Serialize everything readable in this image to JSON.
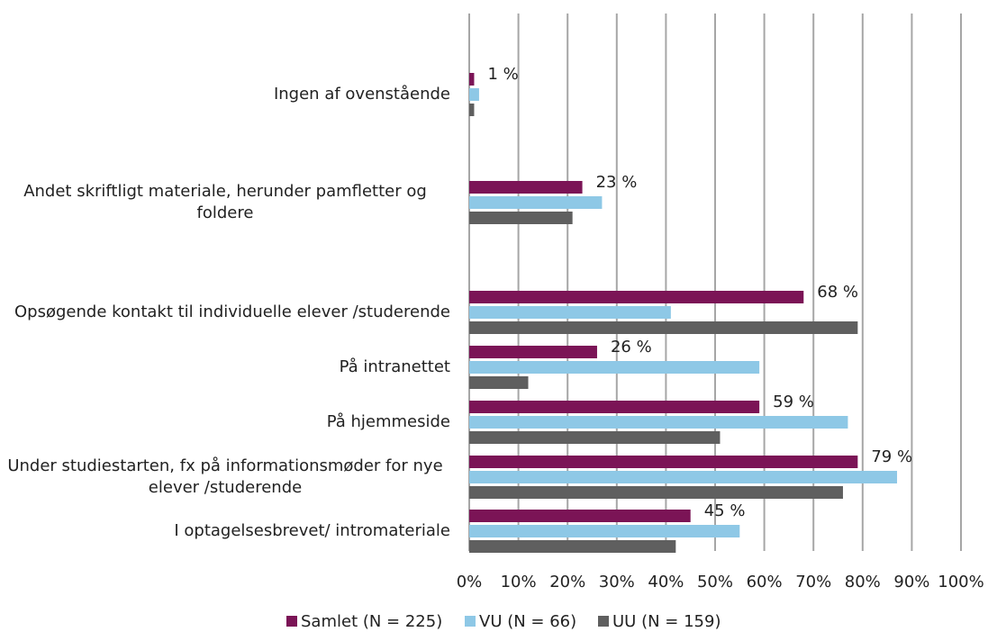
{
  "chart_data": {
    "type": "bar",
    "orientation": "horizontal",
    "categories": [
      "Ingen af ovenstående",
      "Andet skriftligt materiale, herunder pamfletter og foldere",
      "Opsøgende kontakt til individuelle elever /studerende",
      "På intranettet",
      "På hjemmeside",
      "Under studiestarten, fx på informationsmøder for nye elever /studerende",
      "I optagelsesbrevet/ intromateriale"
    ],
    "series": [
      {
        "name": "Samlet (N = 225)",
        "color": "#7b1456",
        "values": [
          1,
          23,
          68,
          26,
          59,
          79,
          45
        ],
        "value_labels": [
          "1 %",
          "23 %",
          "68 %",
          "26 %",
          "59 %",
          "79 %",
          "45 %"
        ]
      },
      {
        "name": "VU (N = 66)",
        "color": "#8ec8e6",
        "values": [
          2,
          27,
          41,
          59,
          77,
          87,
          55
        ]
      },
      {
        "name": "UU (N = 159)",
        "color": "#5f5f5f",
        "values": [
          1,
          21,
          79,
          12,
          51,
          76,
          42
        ]
      }
    ],
    "xlim": [
      0,
      100
    ],
    "xticks": [
      {
        "value": 0,
        "label": "0%"
      },
      {
        "value": 10,
        "label": "10%"
      },
      {
        "value": 20,
        "label": "20%"
      },
      {
        "value": 30,
        "label": "30%"
      },
      {
        "value": 40,
        "label": "40%"
      },
      {
        "value": 50,
        "label": "50%"
      },
      {
        "value": 60,
        "label": "60%"
      },
      {
        "value": 70,
        "label": "70%"
      },
      {
        "value": 80,
        "label": "80%"
      },
      {
        "value": 90,
        "label": "90%"
      },
      {
        "value": 100,
        "label": "100%"
      }
    ],
    "grid": true,
    "legend": "bottom"
  }
}
